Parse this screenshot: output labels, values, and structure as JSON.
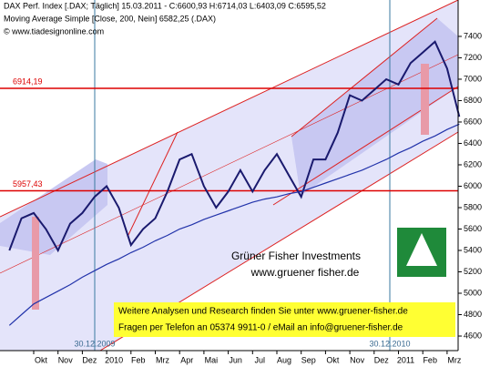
{
  "chart_data": {
    "type": "line",
    "title": "DAX Perf. Index [.DAX; Täglich] 15.03.2011 - C:6600,93 H:6714,03 L:6403,09 C:6595,52",
    "subtitle": "Moving Average Simple [Close, 200, Nein] 6582,25 (.DAX)",
    "credit": "© www.tiadesignonline.com",
    "categories": [
      null,
      null,
      "Okt",
      null,
      "Nov",
      null,
      "Dez",
      null,
      "2010",
      null,
      "Feb",
      null,
      "Mrz",
      null,
      "Apr",
      null,
      "Mai",
      null,
      "Jun",
      null,
      "Jul",
      null,
      "Aug",
      null,
      "Sep",
      null,
      "Okt",
      null,
      "Nov",
      null,
      "Dez",
      null,
      "2011",
      null,
      "Feb",
      null,
      "Mrz",
      null
    ],
    "series": [
      {
        "color": "#1a1a6e",
        "values": [
          5400,
          5700,
          5750,
          5600,
          5400,
          5650,
          5750,
          5900,
          6000,
          5800,
          5450,
          5600,
          5700,
          5950,
          6250,
          6300,
          6000,
          5800,
          5950,
          6150,
          5950,
          6150,
          6300,
          6100,
          5900,
          6250,
          6250,
          6500,
          6850,
          6800,
          6900,
          7000,
          6950,
          7150,
          7250,
          7350,
          7100,
          6650
        ]
      },
      {
        "color": "#2233aa",
        "values": [
          4700,
          4800,
          4900,
          4960,
          5020,
          5080,
          5150,
          5210,
          5270,
          5320,
          5380,
          5430,
          5490,
          5540,
          5600,
          5640,
          5690,
          5730,
          5770,
          5810,
          5850,
          5880,
          5900,
          5930,
          5950,
          5990,
          6030,
          6070,
          6110,
          6150,
          6200,
          6250,
          6310,
          6360,
          6420,
          6470,
          6530,
          6580
        ]
      }
    ],
    "hlines": [
      {
        "value": 6914.19,
        "label": "6914,19",
        "color": "#dd0000"
      },
      {
        "value": 5957.43,
        "label": "5957,43",
        "color": "#dd0000"
      }
    ],
    "ylim": [
      4464,
      7740
    ],
    "yticks": [
      7400,
      7200,
      7000,
      6800,
      6600,
      6400,
      6200,
      6000,
      5800,
      5600,
      5400,
      5200,
      5000,
      4800,
      4600
    ],
    "annotations": [
      "30.12.2009",
      "30.12.2010",
      "Grüner Fisher Investments",
      "www.gruener fisher.de",
      "Weitere Analysen und Research finden Sie unter www.gruener-fisher.de",
      "Fragen per Telefon an 05374 9911-0 / eMail an info@gruener-fisher.de"
    ]
  }
}
